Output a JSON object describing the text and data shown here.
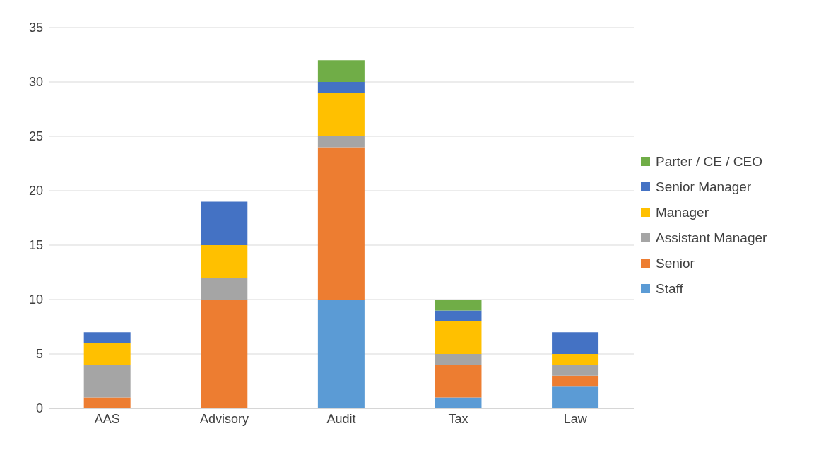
{
  "chart_data": {
    "type": "bar",
    "stacked": true,
    "categories": [
      "AAS",
      "Advisory",
      "Audit",
      "Tax",
      "Law"
    ],
    "series": [
      {
        "name": "Staff",
        "color": "#5b9bd5",
        "values": [
          0,
          0,
          10,
          1,
          2
        ]
      },
      {
        "name": "Senior",
        "color": "#ed7d31",
        "values": [
          1,
          10,
          14,
          3,
          1
        ]
      },
      {
        "name": "Assistant Manager",
        "color": "#a5a5a5",
        "values": [
          3,
          2,
          1,
          1,
          1
        ]
      },
      {
        "name": "Manager",
        "color": "#ffc000",
        "values": [
          2,
          3,
          4,
          3,
          1
        ]
      },
      {
        "name": "Senior Manager",
        "color": "#4472c4",
        "values": [
          1,
          4,
          1,
          1,
          2
        ]
      },
      {
        "name": "Parter / CE / CEO",
        "color": "#70ad47",
        "values": [
          0,
          0,
          2,
          1,
          0
        ]
      }
    ],
    "ylim": [
      0,
      35
    ],
    "yticks": [
      0,
      5,
      10,
      15,
      20,
      25,
      30,
      35
    ],
    "grid": "y",
    "legend": "right"
  }
}
